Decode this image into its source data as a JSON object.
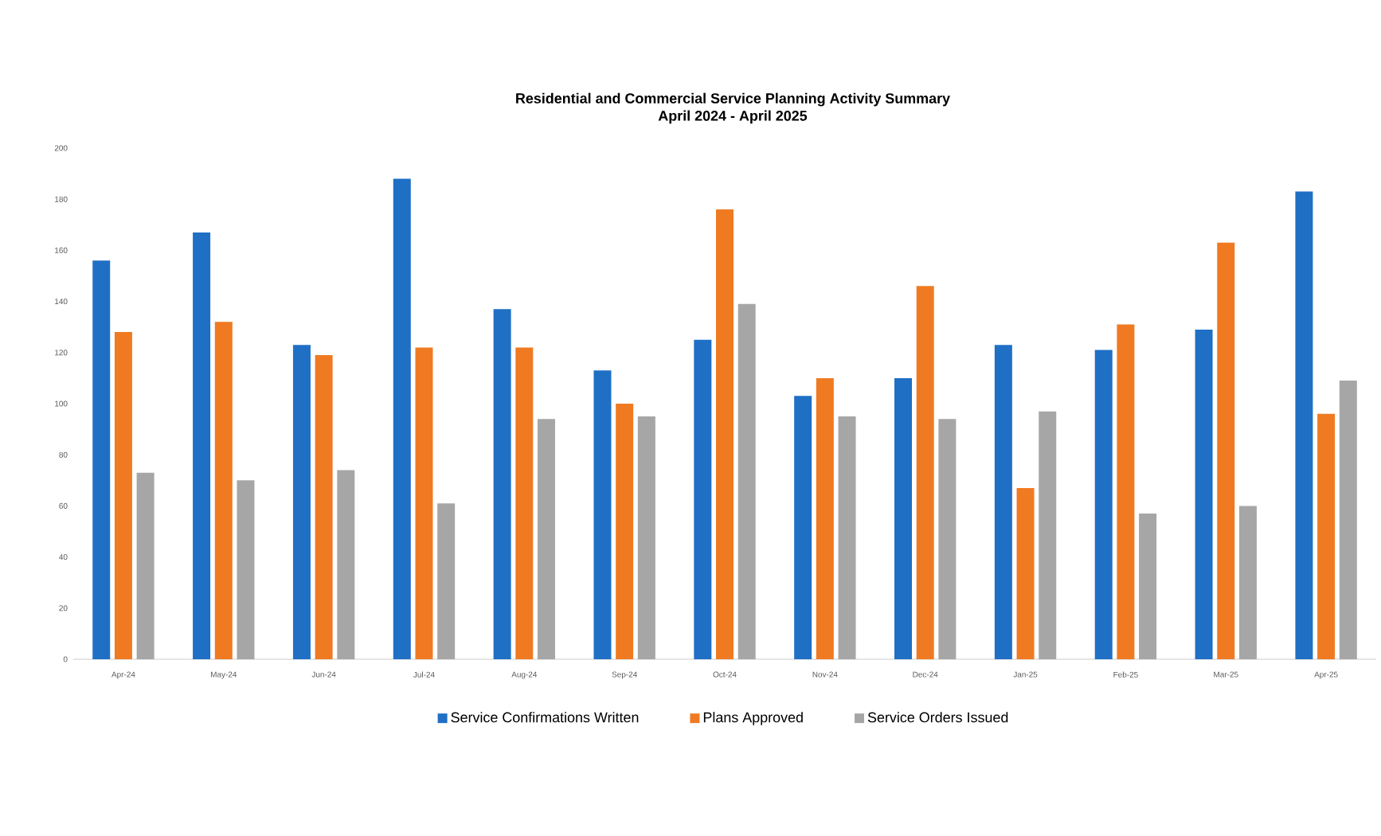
{
  "chart_data": {
    "type": "bar",
    "title": "Residential and Commercial Service Planning Activity Summary",
    "subtitle": "April 2024 - April 2025",
    "categories": [
      "Apr-24",
      "May-24",
      "Jun-24",
      "Jul-24",
      "Aug-24",
      "Sep-24",
      "Oct-24",
      "Nov-24",
      "Dec-24",
      "Jan-25",
      "Feb-25",
      "Mar-25",
      "Apr-25"
    ],
    "series": [
      {
        "name": "Service Confirmations Written",
        "color": "#1f6fc5",
        "values": [
          156,
          167,
          123,
          188,
          137,
          113,
          125,
          103,
          110,
          123,
          121,
          129,
          183
        ]
      },
      {
        "name": "Plans Approved",
        "color": "#f07a22",
        "values": [
          128,
          132,
          119,
          122,
          122,
          100,
          176,
          110,
          146,
          67,
          131,
          163,
          96
        ]
      },
      {
        "name": "Service Orders Issued",
        "color": "#a6a6a6",
        "values": [
          73,
          70,
          74,
          61,
          94,
          95,
          139,
          95,
          94,
          97,
          57,
          60,
          109
        ]
      }
    ],
    "ylim": [
      0,
      200
    ],
    "yticks": [
      0,
      20,
      40,
      60,
      80,
      100,
      120,
      140,
      160,
      180,
      200
    ],
    "legend": "bottom"
  }
}
